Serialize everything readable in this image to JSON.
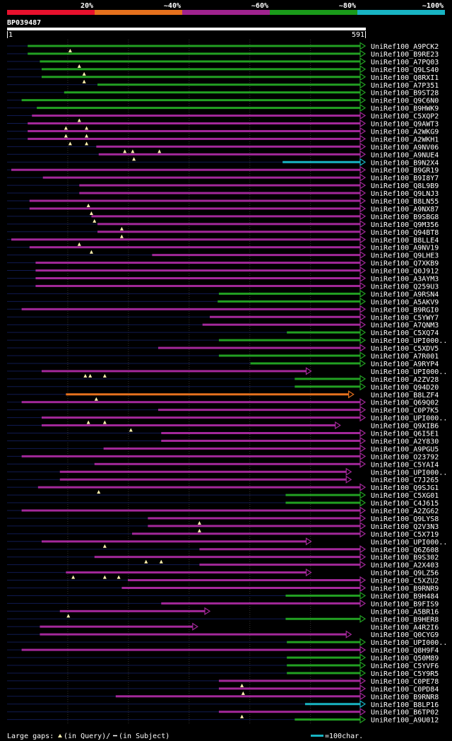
{
  "query_id": "BP039487",
  "scale_start": "1",
  "scale_end": "591",
  "legend": {
    "identity_bins": [
      "20%",
      "~40%",
      "~60%",
      "~80%",
      "~100%"
    ],
    "identity_colors": [
      "#e8112d",
      "#e6711d",
      "#a0238f",
      "#1a9b1a",
      "#18b4c3"
    ],
    "large_gaps_text": "Large gaps:",
    "query_gap_text": "(in Query)/",
    "subject_gap_text": "(in Subject)",
    "scale_text": "=100char."
  },
  "chart_data": {
    "type": "alignment-map",
    "query_length": 591,
    "hits": [
      {
        "name": "UniRef100_A9PCK2",
        "start": 35,
        "end": 591,
        "color": "g",
        "arrow": true,
        "qgaps": [
          105
        ]
      },
      {
        "name": "UniRef100_B9RE23",
        "start": 35,
        "end": 591,
        "color": "g",
        "arrow": true
      },
      {
        "name": "UniRef100_A7PQ03",
        "start": 55,
        "end": 591,
        "color": "g",
        "arrow": true,
        "qgaps": [
          120
        ]
      },
      {
        "name": "UniRef100_Q9LS40",
        "start": 58,
        "end": 591,
        "color": "g",
        "arrow": true,
        "qgaps": [
          128
        ]
      },
      {
        "name": "UniRef100_Q8RXI1",
        "start": 58,
        "end": 591,
        "color": "g",
        "arrow": true,
        "qgaps": [
          128
        ]
      },
      {
        "name": "UniRef100_A7P351",
        "start": 150,
        "end": 591,
        "color": "g",
        "arrow": true
      },
      {
        "name": "UniRef100_B9ST28",
        "start": 95,
        "end": 591,
        "color": "g",
        "arrow": true
      },
      {
        "name": "UniRef100_Q9C6N0",
        "start": 25,
        "end": 591,
        "color": "g",
        "arrow": true
      },
      {
        "name": "UniRef100_B9HWK9",
        "start": 50,
        "end": 591,
        "color": "g",
        "arrow": true
      },
      {
        "name": "UniRef100_C5XQP2",
        "start": 42,
        "end": 591,
        "color": "p",
        "arrow": true,
        "qgaps": [
          120
        ]
      },
      {
        "name": "UniRef100_Q9AWT3",
        "start": 35,
        "end": 591,
        "color": "p",
        "arrow": true,
        "qgaps": [
          98,
          132
        ]
      },
      {
        "name": "UniRef100_A2WKG9",
        "start": 35,
        "end": 591,
        "color": "p",
        "arrow": true,
        "qgaps": [
          98,
          132
        ]
      },
      {
        "name": "UniRef100_A2WKH1",
        "start": 35,
        "end": 591,
        "color": "p",
        "arrow": true,
        "qgaps": [
          105,
          132
        ]
      },
      {
        "name": "UniRef100_A9NV06",
        "start": 148,
        "end": 591,
        "color": "p",
        "arrow": true,
        "qgaps": [
          195,
          208,
          252
        ]
      },
      {
        "name": "UniRef100_A9NUE4",
        "start": 152,
        "end": 591,
        "color": "p",
        "arrow": true,
        "qgaps": [
          210
        ]
      },
      {
        "name": "UniRef100_B9N2X4",
        "start": 455,
        "end": 591,
        "color": "c",
        "arrow": true
      },
      {
        "name": "UniRef100_B9GR19",
        "start": 8,
        "end": 591,
        "color": "p",
        "arrow": true
      },
      {
        "name": "UniRef100_B9I8Y7",
        "start": 60,
        "end": 591,
        "color": "p",
        "arrow": true
      },
      {
        "name": "UniRef100_Q8L9B9",
        "start": 120,
        "end": 591,
        "color": "p",
        "arrow": true
      },
      {
        "name": "UniRef100_Q9LNJ3",
        "start": 120,
        "end": 591,
        "color": "p",
        "arrow": true
      },
      {
        "name": "UniRef100_B8LN55",
        "start": 38,
        "end": 591,
        "color": "p",
        "arrow": true,
        "qgaps": [
          135
        ]
      },
      {
        "name": "UniRef100_A9NX87",
        "start": 38,
        "end": 591,
        "color": "p",
        "arrow": true,
        "qgaps": [
          140
        ]
      },
      {
        "name": "UniRef100_B9SBG8",
        "start": 140,
        "end": 591,
        "color": "p",
        "arrow": true,
        "qgaps": [
          145
        ]
      },
      {
        "name": "UniRef100_Q9M356",
        "start": 150,
        "end": 591,
        "color": "p",
        "arrow": true,
        "qgaps": [
          190
        ]
      },
      {
        "name": "UniRef100_Q94BT8",
        "start": 150,
        "end": 591,
        "color": "p",
        "arrow": true,
        "qgaps": [
          190
        ]
      },
      {
        "name": "UniRef100_B8LLE4",
        "start": 8,
        "end": 591,
        "color": "p",
        "arrow": true,
        "qgaps": [
          120
        ]
      },
      {
        "name": "UniRef100_A9NV19",
        "start": 38,
        "end": 591,
        "color": "p",
        "arrow": true,
        "qgaps": [
          140
        ]
      },
      {
        "name": "UniRef100_Q9LHE3",
        "start": 240,
        "end": 591,
        "color": "p",
        "arrow": true
      },
      {
        "name": "UniRef100_Q7XKB9",
        "start": 48,
        "end": 591,
        "color": "p",
        "arrow": true
      },
      {
        "name": "UniRef100_Q0J912",
        "start": 48,
        "end": 591,
        "color": "p",
        "arrow": true
      },
      {
        "name": "UniRef100_A3AYM3",
        "start": 48,
        "end": 591,
        "color": "p",
        "arrow": true
      },
      {
        "name": "UniRef100_Q259U3",
        "start": 48,
        "end": 591,
        "color": "p",
        "arrow": true
      },
      {
        "name": "UniRef100_A9RSN4",
        "start": 350,
        "end": 591,
        "color": "g",
        "arrow": true
      },
      {
        "name": "UniRef100_A5AKV9",
        "start": 348,
        "end": 591,
        "color": "g",
        "arrow": true
      },
      {
        "name": "UniRef100_B9RGI0",
        "start": 25,
        "end": 591,
        "color": "p",
        "arrow": true
      },
      {
        "name": "UniRef100_C5YWY7",
        "start": 335,
        "end": 591,
        "color": "p",
        "arrow": true
      },
      {
        "name": "UniRef100_A7QNM3",
        "start": 323,
        "end": 591,
        "color": "p",
        "arrow": true
      },
      {
        "name": "UniRef100_C5XQ74",
        "start": 462,
        "end": 591,
        "color": "g",
        "arrow": true
      },
      {
        "name": "UniRef100_UPI000..",
        "start": 350,
        "end": 591,
        "color": "g",
        "arrow": true
      },
      {
        "name": "UniRef100_C5XDV5",
        "start": 250,
        "end": 591,
        "color": "p",
        "arrow": true
      },
      {
        "name": "UniRef100_A7R001",
        "start": 350,
        "end": 591,
        "color": "g",
        "arrow": true
      },
      {
        "name": "UniRef100_A9RYP4",
        "start": 402,
        "end": 591,
        "color": "g",
        "arrow": true
      },
      {
        "name": "UniRef100_UPI000..",
        "start": 58,
        "end": 502,
        "color": "p",
        "arrow": true,
        "qgaps": [
          130,
          138,
          162
        ]
      },
      {
        "name": "UniRef100_A2ZV28",
        "start": 475,
        "end": 591,
        "color": "g",
        "arrow": true
      },
      {
        "name": "UniRef100_Q94D20",
        "start": 475,
        "end": 591,
        "color": "g",
        "arrow": true
      },
      {
        "name": "UniRef100_B8LZF4",
        "start": 98,
        "end": 572,
        "color": "o",
        "arrow": true,
        "qgaps": [
          148
        ]
      },
      {
        "name": "UniRef100_Q69Q02",
        "start": 25,
        "end": 591,
        "color": "p",
        "arrow": true
      },
      {
        "name": "UniRef100_C0P7K5",
        "start": 250,
        "end": 591,
        "color": "p",
        "arrow": true
      },
      {
        "name": "UniRef100_UPI000..",
        "start": 58,
        "end": 591,
        "color": "p",
        "arrow": true,
        "qgaps": [
          135,
          162
        ]
      },
      {
        "name": "UniRef100_Q9XIB6",
        "start": 58,
        "end": 550,
        "color": "p",
        "arrow": true,
        "qgaps": [
          205
        ]
      },
      {
        "name": "UniRef100_Q6I5E1",
        "start": 255,
        "end": 591,
        "color": "p",
        "arrow": true
      },
      {
        "name": "UniRef100_A2Y830",
        "start": 255,
        "end": 591,
        "color": "p",
        "arrow": true
      },
      {
        "name": "UniRef100_A9PGU5",
        "start": 160,
        "end": 591,
        "color": "p",
        "arrow": true
      },
      {
        "name": "UniRef100_O23792",
        "start": 25,
        "end": 591,
        "color": "p",
        "arrow": true
      },
      {
        "name": "UniRef100_C5YAI4",
        "start": 145,
        "end": 591,
        "color": "p",
        "arrow": true
      },
      {
        "name": "UniRef100_UPI000..",
        "start": 88,
        "end": 568,
        "color": "p",
        "arrow": true
      },
      {
        "name": "UniRef100_C7J265",
        "start": 88,
        "end": 568,
        "color": "p",
        "arrow": true
      },
      {
        "name": "UniRef100_Q9SJG1",
        "start": 52,
        "end": 591,
        "color": "p",
        "arrow": true,
        "qgaps": [
          152
        ]
      },
      {
        "name": "UniRef100_C5XG01",
        "start": 460,
        "end": 591,
        "color": "g",
        "arrow": true
      },
      {
        "name": "UniRef100_C4J615",
        "start": 460,
        "end": 591,
        "color": "g",
        "arrow": true
      },
      {
        "name": "UniRef100_A2ZG62",
        "start": 25,
        "end": 591,
        "color": "p",
        "arrow": true
      },
      {
        "name": "UniRef100_Q9LYS8",
        "start": 233,
        "end": 591,
        "color": "p",
        "arrow": true,
        "qgaps": [
          318
        ]
      },
      {
        "name": "UniRef100_Q2V3N3",
        "start": 233,
        "end": 591,
        "color": "p",
        "arrow": true,
        "qgaps": [
          318
        ]
      },
      {
        "name": "UniRef100_C5X719",
        "start": 207,
        "end": 591,
        "color": "p",
        "arrow": true
      },
      {
        "name": "UniRef100_UPI000..",
        "start": 58,
        "end": 502,
        "color": "p",
        "arrow": true,
        "qgaps": [
          162
        ]
      },
      {
        "name": "UniRef100_Q6Z608",
        "start": 318,
        "end": 591,
        "color": "p",
        "arrow": true
      },
      {
        "name": "UniRef100_B9S302",
        "start": 145,
        "end": 591,
        "color": "p",
        "arrow": true,
        "qgaps": [
          230,
          255
        ]
      },
      {
        "name": "UniRef100_A2X403",
        "start": 318,
        "end": 591,
        "color": "p",
        "arrow": true
      },
      {
        "name": "UniRef100_Q9LZ56",
        "start": 98,
        "end": 502,
        "color": "p",
        "arrow": true,
        "qgaps": [
          110,
          162,
          185
        ]
      },
      {
        "name": "UniRef100_C5XZU2",
        "start": 200,
        "end": 591,
        "color": "p",
        "arrow": true
      },
      {
        "name": "UniRef100_B9RNR9",
        "start": 190,
        "end": 591,
        "color": "p",
        "arrow": true
      },
      {
        "name": "UniRef100_B9H484",
        "start": 460,
        "end": 591,
        "color": "g",
        "arrow": true
      },
      {
        "name": "UniRef100_B9FIS9",
        "start": 255,
        "end": 591,
        "color": "p",
        "arrow": true
      },
      {
        "name": "UniRef100_A5BR16",
        "start": 88,
        "end": 335,
        "color": "p",
        "arrow": true,
        "qgaps": [
          102
        ]
      },
      {
        "name": "UniRef100_B9HER8",
        "start": 460,
        "end": 591,
        "color": "g",
        "arrow": true
      },
      {
        "name": "UniRef100_A4R2I6",
        "start": 55,
        "end": 315,
        "color": "p",
        "arrow": true
      },
      {
        "name": "UniRef100_Q0CYG9",
        "start": 55,
        "end": 568,
        "color": "p",
        "arrow": true
      },
      {
        "name": "UniRef100_UPI000..",
        "start": 462,
        "end": 591,
        "color": "g",
        "arrow": true
      },
      {
        "name": "UniRef100_Q8H9F4",
        "start": 25,
        "end": 591,
        "color": "p",
        "arrow": true
      },
      {
        "name": "UniRef100_Q50M89",
        "start": 462,
        "end": 591,
        "color": "g",
        "arrow": true
      },
      {
        "name": "UniRef100_C5YVF6",
        "start": 462,
        "end": 591,
        "color": "g",
        "arrow": true
      },
      {
        "name": "UniRef100_C5Y9R5",
        "start": 462,
        "end": 591,
        "color": "g",
        "arrow": true
      },
      {
        "name": "UniRef100_C0PE78",
        "start": 350,
        "end": 591,
        "color": "p",
        "arrow": true,
        "qgaps": [
          388
        ]
      },
      {
        "name": "UniRef100_C0PD84",
        "start": 350,
        "end": 591,
        "color": "p",
        "arrow": true,
        "qgaps": [
          390
        ]
      },
      {
        "name": "UniRef100_B9RNR8",
        "start": 180,
        "end": 591,
        "color": "p",
        "arrow": true
      },
      {
        "name": "UniRef100_B8LP16",
        "start": 492,
        "end": 591,
        "color": "c",
        "arrow": true
      },
      {
        "name": "UniRef100_B6TP02",
        "start": 350,
        "end": 591,
        "color": "p",
        "arrow": true,
        "qgaps": [
          388
        ]
      },
      {
        "name": "UniRef100_A9U012",
        "start": 475,
        "end": 591,
        "color": "g",
        "arrow": true
      }
    ]
  }
}
